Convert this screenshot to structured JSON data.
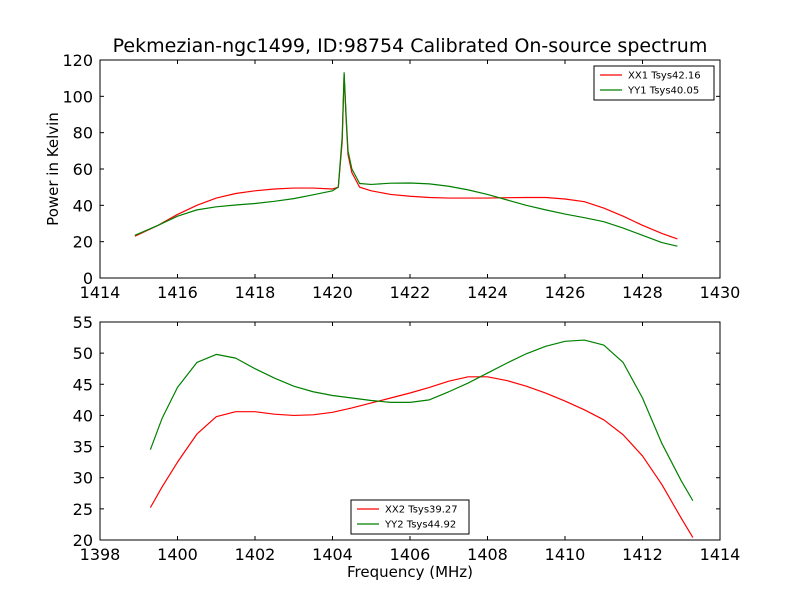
{
  "chart_data": [
    {
      "type": "line",
      "title": "Pekmezian-ngc1499, ID:98754 Calibrated On-source spectrum",
      "xlabel": "",
      "ylabel": "Power in Kelvin",
      "xlim": [
        1414,
        1430
      ],
      "ylim": [
        0,
        120
      ],
      "xticks": [
        1414,
        1416,
        1418,
        1420,
        1422,
        1424,
        1426,
        1428,
        1430
      ],
      "yticks": [
        0,
        20,
        40,
        60,
        80,
        100,
        120
      ],
      "grid": false,
      "legend": "top-right",
      "series": [
        {
          "name": "XX1 Tsys42.16",
          "color": "#ff0000",
          "x": [
            1414.9,
            1415.5,
            1416.0,
            1416.5,
            1417.0,
            1417.5,
            1418.0,
            1418.5,
            1419.0,
            1419.5,
            1420.0,
            1420.15,
            1420.25,
            1420.3,
            1420.35,
            1420.4,
            1420.5,
            1420.7,
            1421.0,
            1421.5,
            1422.0,
            1422.5,
            1423.0,
            1423.5,
            1424.0,
            1424.5,
            1425.0,
            1425.5,
            1426.0,
            1426.5,
            1427.0,
            1427.5,
            1428.0,
            1428.5,
            1428.9
          ],
          "y": [
            23,
            29,
            35,
            40,
            44,
            46.5,
            48,
            49,
            49.5,
            49.5,
            49,
            50,
            75,
            112,
            88,
            68,
            58,
            50,
            48,
            46,
            45,
            44.3,
            44,
            44,
            44,
            44.2,
            44.3,
            44.3,
            43.5,
            42,
            38.5,
            34,
            29,
            24.5,
            21.5
          ]
        },
        {
          "name": "YY1 Tsys40.05",
          "color": "#008000",
          "x": [
            1414.9,
            1415.5,
            1416.0,
            1416.5,
            1417.0,
            1417.5,
            1418.0,
            1418.5,
            1419.0,
            1419.5,
            1420.0,
            1420.15,
            1420.25,
            1420.3,
            1420.35,
            1420.4,
            1420.5,
            1420.7,
            1421.0,
            1421.5,
            1422.0,
            1422.5,
            1423.0,
            1423.5,
            1424.0,
            1424.5,
            1425.0,
            1425.5,
            1426.0,
            1426.5,
            1427.0,
            1427.5,
            1428.0,
            1428.5,
            1428.9
          ],
          "y": [
            23.5,
            29,
            34,
            37.5,
            39.2,
            40.2,
            41,
            42.2,
            43.7,
            45.8,
            48,
            50,
            78,
            113,
            90,
            70,
            60,
            52,
            51.5,
            52.2,
            52.3,
            51.8,
            50.5,
            48.5,
            46,
            43,
            40,
            37.5,
            35.2,
            33.2,
            31,
            27.5,
            23.5,
            19.5,
            17.5
          ]
        }
      ]
    },
    {
      "type": "line",
      "title": "",
      "xlabel": "Frequency (MHz)",
      "ylabel": "",
      "xlim": [
        1398,
        1414
      ],
      "ylim": [
        20,
        55
      ],
      "xticks": [
        1398,
        1400,
        1402,
        1404,
        1406,
        1408,
        1410,
        1412,
        1414
      ],
      "yticks": [
        20,
        25,
        30,
        35,
        40,
        45,
        50,
        55
      ],
      "grid": false,
      "legend": "bottom-center",
      "series": [
        {
          "name": "XX2 Tsys39.27",
          "color": "#ff0000",
          "x": [
            1399.3,
            1399.6,
            1400.0,
            1400.5,
            1401.0,
            1401.5,
            1402.0,
            1402.5,
            1403.0,
            1403.5,
            1404.0,
            1404.5,
            1405.0,
            1405.5,
            1406.0,
            1406.5,
            1407.0,
            1407.5,
            1408.0,
            1408.5,
            1409.0,
            1409.5,
            1410.0,
            1410.5,
            1411.0,
            1411.5,
            1412.0,
            1412.5,
            1413.0,
            1413.3
          ],
          "y": [
            25.2,
            28.5,
            32.5,
            37,
            39.8,
            40.6,
            40.6,
            40.2,
            40,
            40.1,
            40.5,
            41.2,
            42,
            42.8,
            43.6,
            44.5,
            45.5,
            46.2,
            46.2,
            45.6,
            44.7,
            43.6,
            42.3,
            40.9,
            39.3,
            36.9,
            33.5,
            28.9,
            23.5,
            20.4
          ]
        },
        {
          "name": "YY2 Tsys44.92",
          "color": "#008000",
          "x": [
            1399.3,
            1399.6,
            1400.0,
            1400.5,
            1401.0,
            1401.5,
            1402.0,
            1402.5,
            1403.0,
            1403.5,
            1404.0,
            1404.5,
            1405.0,
            1405.5,
            1406.0,
            1406.5,
            1407.0,
            1407.5,
            1408.0,
            1408.5,
            1409.0,
            1409.5,
            1410.0,
            1410.5,
            1411.0,
            1411.5,
            1412.0,
            1412.5,
            1413.0,
            1413.3
          ],
          "y": [
            34.5,
            39.5,
            44.5,
            48.5,
            49.8,
            49.2,
            47.5,
            46,
            44.7,
            43.8,
            43.2,
            42.8,
            42.4,
            42.1,
            42.1,
            42.5,
            43.8,
            45.2,
            46.8,
            48.4,
            49.9,
            51.1,
            51.9,
            52.1,
            51.3,
            48.5,
            42.8,
            35.5,
            29.5,
            26.3
          ]
        }
      ]
    }
  ]
}
